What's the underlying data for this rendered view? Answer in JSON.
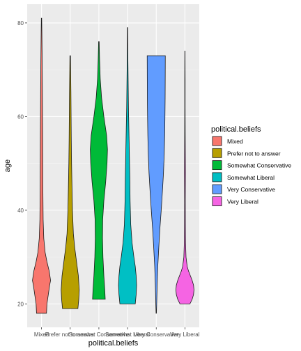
{
  "chart_data": {
    "type": "violin",
    "xlabel": "political.beliefs",
    "ylabel": "age",
    "ylim": [
      15,
      84
    ],
    "yticks": [
      20,
      40,
      60,
      80
    ],
    "grid": true,
    "legend": {
      "title": "political.beliefs",
      "position": "right"
    },
    "categories": [
      "Mixed",
      "Prefer not to answer",
      "Somewhat Conservative",
      "Somewhat Liberal",
      "Very Conservative",
      "Very Liberal"
    ],
    "series": [
      {
        "category": "Mixed",
        "color": "#F8766D",
        "profile": [
          [
            18,
            0.55
          ],
          [
            20,
            0.6
          ],
          [
            22,
            0.75
          ],
          [
            24,
            0.9
          ],
          [
            25,
            1.0
          ],
          [
            27,
            0.85
          ],
          [
            29,
            0.6
          ],
          [
            31,
            0.4
          ],
          [
            34,
            0.25
          ],
          [
            38,
            0.18
          ],
          [
            45,
            0.15
          ],
          [
            55,
            0.13
          ],
          [
            65,
            0.1
          ],
          [
            72,
            0.07
          ],
          [
            78,
            0.04
          ],
          [
            81,
            0.02
          ]
        ]
      },
      {
        "category": "Prefer not to answer",
        "color": "#B79F00",
        "profile": [
          [
            19,
            0.85
          ],
          [
            21,
            0.95
          ],
          [
            23,
            1.0
          ],
          [
            26,
            0.9
          ],
          [
            29,
            0.7
          ],
          [
            32,
            0.5
          ],
          [
            35,
            0.35
          ],
          [
            40,
            0.25
          ],
          [
            45,
            0.2
          ],
          [
            50,
            0.15
          ],
          [
            55,
            0.12
          ],
          [
            60,
            0.1
          ],
          [
            65,
            0.08
          ],
          [
            70,
            0.05
          ],
          [
            73,
            0.03
          ]
        ]
      },
      {
        "category": "Somewhat Conservative",
        "color": "#00BA38",
        "profile": [
          [
            21,
            0.7
          ],
          [
            23,
            0.65
          ],
          [
            26,
            0.55
          ],
          [
            30,
            0.45
          ],
          [
            34,
            0.4
          ],
          [
            38,
            0.42
          ],
          [
            42,
            0.55
          ],
          [
            46,
            0.75
          ],
          [
            50,
            0.9
          ],
          [
            53,
            0.95
          ],
          [
            56,
            0.85
          ],
          [
            60,
            0.55
          ],
          [
            64,
            0.3
          ],
          [
            68,
            0.15
          ],
          [
            72,
            0.08
          ],
          [
            76,
            0.03
          ]
        ]
      },
      {
        "category": "Somewhat Liberal",
        "color": "#00BFC4",
        "profile": [
          [
            20,
            0.85
          ],
          [
            22,
            0.95
          ],
          [
            24,
            1.0
          ],
          [
            26,
            0.95
          ],
          [
            28,
            0.85
          ],
          [
            30,
            0.7
          ],
          [
            33,
            0.5
          ],
          [
            37,
            0.35
          ],
          [
            42,
            0.28
          ],
          [
            47,
            0.25
          ],
          [
            52,
            0.2
          ],
          [
            57,
            0.15
          ],
          [
            62,
            0.1
          ],
          [
            67,
            0.07
          ],
          [
            72,
            0.04
          ],
          [
            79,
            0.02
          ]
        ]
      },
      {
        "category": "Very Conservative",
        "color": "#619CFF",
        "profile": [
          [
            18,
            0.02
          ],
          [
            20,
            0.05
          ],
          [
            24,
            0.1
          ],
          [
            28,
            0.17
          ],
          [
            32,
            0.28
          ],
          [
            36,
            0.4
          ],
          [
            40,
            0.55
          ],
          [
            44,
            0.68
          ],
          [
            48,
            0.8
          ],
          [
            52,
            0.88
          ],
          [
            56,
            0.93
          ],
          [
            60,
            0.96
          ],
          [
            64,
            0.98
          ],
          [
            68,
            0.99
          ],
          [
            73,
            1.0
          ]
        ]
      },
      {
        "category": "Very Liberal",
        "color": "#F564E3",
        "profile": [
          [
            20,
            0.55
          ],
          [
            21,
            0.8
          ],
          [
            22,
            0.95
          ],
          [
            23,
            1.0
          ],
          [
            24,
            0.95
          ],
          [
            25,
            0.8
          ],
          [
            26,
            0.6
          ],
          [
            27,
            0.4
          ],
          [
            28,
            0.25
          ],
          [
            30,
            0.12
          ],
          [
            33,
            0.07
          ],
          [
            37,
            0.05
          ],
          [
            42,
            0.04
          ],
          [
            48,
            0.06
          ],
          [
            51,
            0.05
          ],
          [
            56,
            0.03
          ],
          [
            62,
            0.02
          ],
          [
            68,
            0.02
          ],
          [
            74,
            0.01
          ]
        ]
      }
    ]
  }
}
